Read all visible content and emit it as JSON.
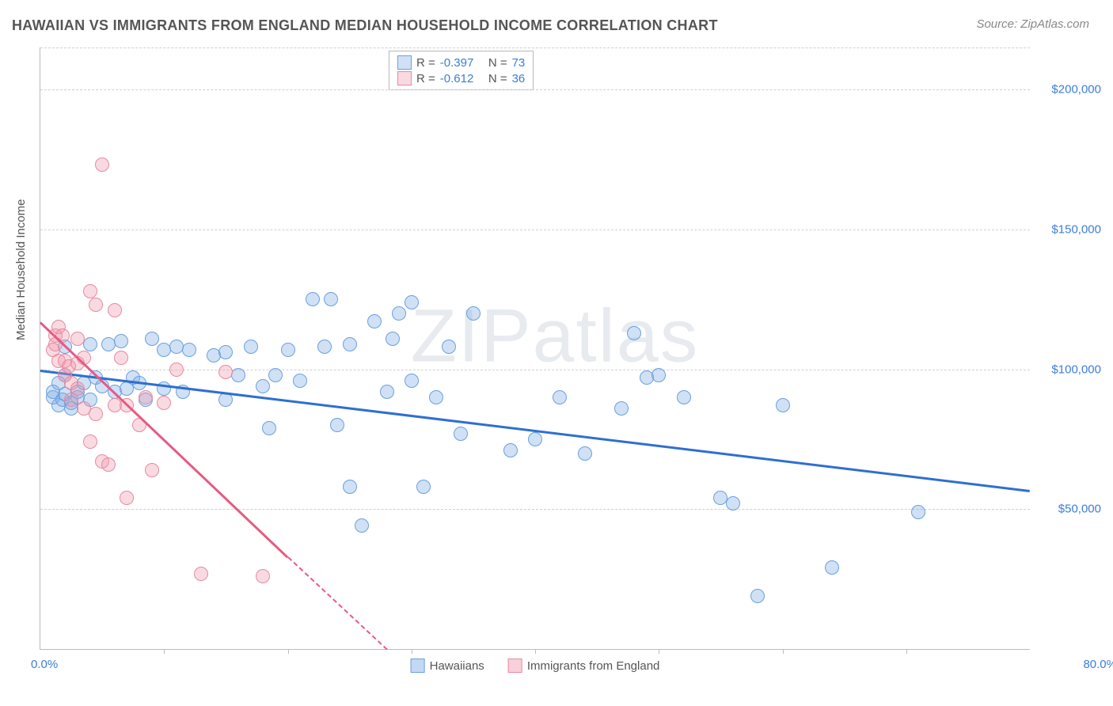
{
  "title": "HAWAIIAN VS IMMIGRANTS FROM ENGLAND MEDIAN HOUSEHOLD INCOME CORRELATION CHART",
  "source": "Source: ZipAtlas.com",
  "ylabel": "Median Household Income",
  "watermark": "ZIPatlas",
  "chart": {
    "type": "scatter",
    "xlim": [
      0,
      80
    ],
    "ylim": [
      0,
      215000
    ],
    "x_min_label": "0.0%",
    "x_max_label": "80.0%",
    "y_ticks": [
      50000,
      100000,
      150000,
      200000
    ],
    "y_tick_labels": [
      "$50,000",
      "$100,000",
      "$150,000",
      "$200,000"
    ],
    "x_ticks": [
      10,
      20,
      30,
      40,
      50,
      60,
      70
    ],
    "grid_color": "#d0d0d0",
    "background_color": "#ffffff",
    "point_radius": 9,
    "series": [
      {
        "name": "Hawaiians",
        "fill": "rgba(120,170,230,0.35)",
        "stroke": "#6aa0de",
        "trend_color": "#2e6fd0",
        "trend": {
          "x1": 0,
          "y1": 100000,
          "x2": 80,
          "y2": 57000
        },
        "R": "-0.397",
        "N": "73",
        "points": [
          [
            1,
            90000
          ],
          [
            1,
            92000
          ],
          [
            1.5,
            87000
          ],
          [
            1.5,
            95000
          ],
          [
            1.8,
            89000
          ],
          [
            2,
            98000
          ],
          [
            2,
            91000
          ],
          [
            2,
            108000
          ],
          [
            2.5,
            88000
          ],
          [
            2.5,
            86000
          ],
          [
            3,
            92000
          ],
          [
            3,
            90000
          ],
          [
            3.5,
            95000
          ],
          [
            4,
            89000
          ],
          [
            4,
            109000
          ],
          [
            4.5,
            97000
          ],
          [
            5,
            94000
          ],
          [
            5.5,
            109000
          ],
          [
            6,
            92000
          ],
          [
            6.5,
            110000
          ],
          [
            7,
            93000
          ],
          [
            7.5,
            97000
          ],
          [
            8,
            95000
          ],
          [
            8.5,
            89000
          ],
          [
            9,
            111000
          ],
          [
            10,
            107000
          ],
          [
            10,
            93000
          ],
          [
            11,
            108000
          ],
          [
            11.5,
            92000
          ],
          [
            12,
            107000
          ],
          [
            14,
            105000
          ],
          [
            15,
            106000
          ],
          [
            15,
            89000
          ],
          [
            16,
            98000
          ],
          [
            17,
            108000
          ],
          [
            18,
            94000
          ],
          [
            18.5,
            79000
          ],
          [
            19,
            98000
          ],
          [
            20,
            107000
          ],
          [
            21,
            96000
          ],
          [
            22,
            125000
          ],
          [
            23,
            108000
          ],
          [
            23.5,
            125000
          ],
          [
            24,
            80000
          ],
          [
            25,
            109000
          ],
          [
            25,
            58000
          ],
          [
            26,
            44000
          ],
          [
            27,
            117000
          ],
          [
            28,
            92000
          ],
          [
            28.5,
            111000
          ],
          [
            29,
            120000
          ],
          [
            30,
            124000
          ],
          [
            30,
            96000
          ],
          [
            31,
            58000
          ],
          [
            32,
            90000
          ],
          [
            33,
            108000
          ],
          [
            34,
            77000
          ],
          [
            35,
            120000
          ],
          [
            38,
            71000
          ],
          [
            40,
            75000
          ],
          [
            42,
            90000
          ],
          [
            44,
            70000
          ],
          [
            47,
            86000
          ],
          [
            48,
            113000
          ],
          [
            49,
            97000
          ],
          [
            50,
            98000
          ],
          [
            52,
            90000
          ],
          [
            55,
            54000
          ],
          [
            56,
            52000
          ],
          [
            58,
            19000
          ],
          [
            60,
            87000
          ],
          [
            64,
            29000
          ],
          [
            71,
            49000
          ]
        ]
      },
      {
        "name": "Immigrants from England",
        "fill": "rgba(240,150,170,0.35)",
        "stroke": "#e68aa0",
        "trend_color": "#e55a85",
        "trend": {
          "x1": 0,
          "y1": 117000,
          "x2": 20,
          "y2": 33000
        },
        "trend_ext": {
          "x1": 20,
          "y1": 33000,
          "x2": 28,
          "y2": 0
        },
        "R": "-0.612",
        "N": "36",
        "points": [
          [
            1,
            107000
          ],
          [
            1.2,
            112000
          ],
          [
            1.2,
            109000
          ],
          [
            1.5,
            103000
          ],
          [
            1.5,
            115000
          ],
          [
            1.8,
            112000
          ],
          [
            2,
            103000
          ],
          [
            2,
            98000
          ],
          [
            2.3,
            101000
          ],
          [
            2.5,
            89000
          ],
          [
            2.5,
            95000
          ],
          [
            3,
            111000
          ],
          [
            3,
            93000
          ],
          [
            3,
            102000
          ],
          [
            3.5,
            104000
          ],
          [
            3.5,
            86000
          ],
          [
            4,
            128000
          ],
          [
            4,
            74000
          ],
          [
            4.5,
            123000
          ],
          [
            4.5,
            84000
          ],
          [
            5,
            67000
          ],
          [
            5,
            173000
          ],
          [
            5.5,
            66000
          ],
          [
            6,
            87000
          ],
          [
            6,
            121000
          ],
          [
            6.5,
            104000
          ],
          [
            7,
            54000
          ],
          [
            7,
            87000
          ],
          [
            8,
            80000
          ],
          [
            8.5,
            90000
          ],
          [
            9,
            64000
          ],
          [
            10,
            88000
          ],
          [
            11,
            100000
          ],
          [
            13,
            27000
          ],
          [
            15,
            99000
          ],
          [
            18,
            26000
          ]
        ]
      }
    ]
  },
  "legend_bottom": [
    {
      "label": "Hawaiians",
      "fill": "rgba(120,170,230,0.45)",
      "stroke": "#6aa0de"
    },
    {
      "label": "Immigrants from England",
      "fill": "rgba(240,150,170,0.45)",
      "stroke": "#e68aa0"
    }
  ]
}
